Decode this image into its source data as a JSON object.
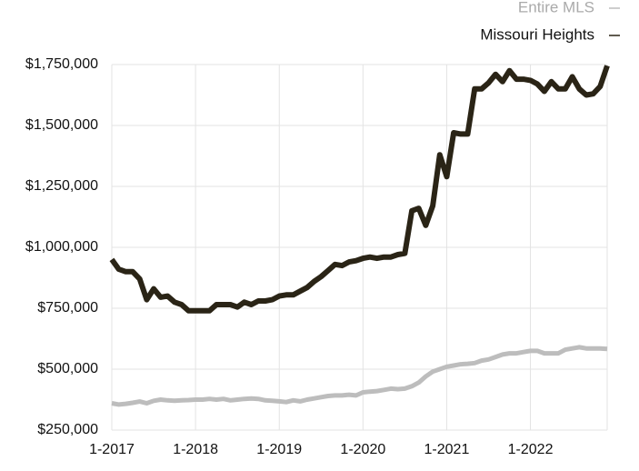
{
  "chart_data": {
    "type": "line",
    "x": [
      "2017-01",
      "2017-02",
      "2017-03",
      "2017-04",
      "2017-05",
      "2017-06",
      "2017-07",
      "2017-08",
      "2017-09",
      "2017-10",
      "2017-11",
      "2017-12",
      "2018-01",
      "2018-02",
      "2018-03",
      "2018-04",
      "2018-05",
      "2018-06",
      "2018-07",
      "2018-08",
      "2018-09",
      "2018-10",
      "2018-11",
      "2018-12",
      "2019-01",
      "2019-02",
      "2019-03",
      "2019-04",
      "2019-05",
      "2019-06",
      "2019-07",
      "2019-08",
      "2019-09",
      "2019-10",
      "2019-11",
      "2019-12",
      "2020-01",
      "2020-02",
      "2020-03",
      "2020-04",
      "2020-05",
      "2020-06",
      "2020-07",
      "2020-08",
      "2020-09",
      "2020-10",
      "2020-11",
      "2020-12",
      "2021-01",
      "2021-02",
      "2021-03",
      "2021-04",
      "2021-05",
      "2021-06",
      "2021-07",
      "2021-08",
      "2021-09",
      "2021-10",
      "2021-11",
      "2021-12",
      "2022-01",
      "2022-02",
      "2022-03",
      "2022-04",
      "2022-05",
      "2022-06",
      "2022-07",
      "2022-08",
      "2022-09",
      "2022-10",
      "2022-11",
      "2022-12"
    ],
    "series": [
      {
        "name": "Entire MLS",
        "color": "#bdbdbd",
        "values": [
          360000,
          355000,
          358000,
          362000,
          367000,
          360000,
          370000,
          375000,
          372000,
          370000,
          372000,
          373000,
          375000,
          375000,
          378000,
          375000,
          378000,
          372000,
          375000,
          378000,
          380000,
          378000,
          372000,
          370000,
          368000,
          365000,
          372000,
          368000,
          375000,
          380000,
          385000,
          390000,
          392000,
          392000,
          395000,
          392000,
          405000,
          408000,
          410000,
          415000,
          420000,
          418000,
          420000,
          430000,
          445000,
          470000,
          490000,
          500000,
          510000,
          515000,
          520000,
          522000,
          525000,
          535000,
          540000,
          550000,
          560000,
          565000,
          565000,
          570000,
          575000,
          575000,
          565000,
          565000,
          565000,
          580000,
          585000,
          590000,
          585000,
          585000,
          585000,
          583000
        ]
      },
      {
        "name": "Missouri Heights",
        "color": "#2a2416",
        "values": [
          950000,
          910000,
          900000,
          900000,
          870000,
          785000,
          830000,
          795000,
          800000,
          775000,
          765000,
          740000,
          740000,
          740000,
          740000,
          765000,
          765000,
          765000,
          755000,
          775000,
          765000,
          780000,
          780000,
          785000,
          800000,
          805000,
          805000,
          820000,
          835000,
          860000,
          880000,
          905000,
          930000,
          925000,
          940000,
          945000,
          955000,
          960000,
          955000,
          960000,
          960000,
          970000,
          975000,
          1150000,
          1160000,
          1090000,
          1170000,
          1380000,
          1290000,
          1470000,
          1465000,
          1465000,
          1650000,
          1650000,
          1675000,
          1710000,
          1680000,
          1725000,
          1690000,
          1690000,
          1685000,
          1670000,
          1640000,
          1680000,
          1650000,
          1650000,
          1700000,
          1650000,
          1625000,
          1630000,
          1660000,
          1745000
        ]
      }
    ],
    "ylim": [
      250000,
      1750000
    ],
    "yticks": [
      {
        "value": 250000,
        "label": "$250,000"
      },
      {
        "value": 500000,
        "label": "$500,000"
      },
      {
        "value": 750000,
        "label": "$750,000"
      },
      {
        "value": 1000000,
        "label": "$1,000,000"
      },
      {
        "value": 1250000,
        "label": "$1,250,000"
      },
      {
        "value": 1500000,
        "label": "$1,500,000"
      },
      {
        "value": 1750000,
        "label": "$1,750,000"
      }
    ],
    "xticks": [
      {
        "value": "2017-01",
        "label": "1-2017"
      },
      {
        "value": "2018-01",
        "label": "1-2018"
      },
      {
        "value": "2019-01",
        "label": "1-2019"
      },
      {
        "value": "2020-01",
        "label": "1-2020"
      },
      {
        "value": "2021-01",
        "label": "1-2021"
      },
      {
        "value": "2022-01",
        "label": "1-2022"
      }
    ],
    "grid": true,
    "legend": "top-right"
  }
}
